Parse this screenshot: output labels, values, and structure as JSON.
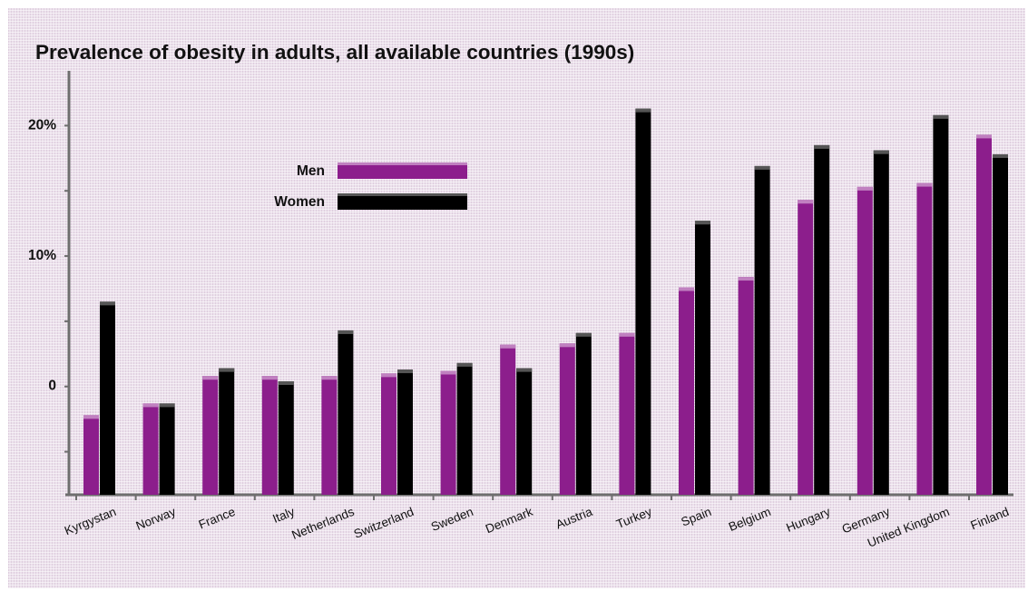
{
  "chart_data": {
    "type": "bar",
    "title": "Prevalence of obesity in adults, all available countries (1990s)",
    "xlabel": "",
    "ylabel": "",
    "categories": [
      "Kyrgystan",
      "Norway",
      "France",
      "Italy",
      "Netherlands",
      "Switzerland",
      "Sweden",
      "Denmark",
      "Austria",
      "Turkey",
      "Spain",
      "Belgium",
      "Hungary",
      "Germany",
      "United Kingdom",
      "Finland"
    ],
    "series": [
      {
        "name": "Men",
        "color": "#8c1e8c",
        "values": [
          -2.2,
          -1.3,
          0.8,
          0.8,
          0.8,
          1.0,
          1.2,
          3.2,
          3.3,
          4.1,
          7.6,
          8.4,
          14.3,
          15.3,
          15.6,
          19.3
        ]
      },
      {
        "name": "Women",
        "color": "#000000",
        "values": [
          6.5,
          -1.3,
          1.4,
          0.4,
          4.3,
          1.3,
          1.8,
          1.4,
          4.1,
          21.3,
          12.7,
          16.9,
          18.5,
          18.1,
          20.8,
          17.8
        ]
      }
    ],
    "yticks": [
      {
        "value": 0,
        "label": "0"
      },
      {
        "value": 10,
        "label": "10%"
      },
      {
        "value": 20,
        "label": "20%"
      }
    ],
    "ylim": [
      -8.3,
      24.2
    ],
    "grid": false,
    "legend_position": "upper-left-center"
  }
}
